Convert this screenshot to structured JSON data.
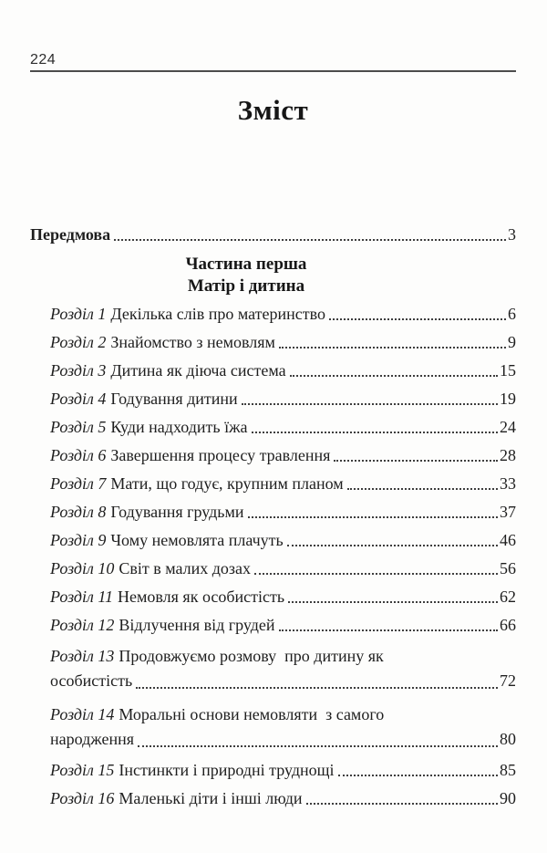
{
  "page": {
    "header_page_number": "224",
    "title": "Зміст"
  },
  "toc": {
    "preface": {
      "label": "Передмова",
      "page": "3"
    },
    "part_heading": {
      "line1": "Частина перша",
      "line2": "Матір і дитина"
    },
    "entries": [
      {
        "prefix": "Розділ 1",
        "title": "Декілька слів про материнство",
        "page": "6"
      },
      {
        "prefix": "Розділ 2",
        "title": "Знайомство з немовлям",
        "page": "9"
      },
      {
        "prefix": "Розділ 3",
        "title": "Дитина як діюча система",
        "page": "15"
      },
      {
        "prefix": "Розділ 4",
        "title": "Годування дитини",
        "page": "19"
      },
      {
        "prefix": "Розділ 5",
        "title": "Куди надходить їжа",
        "page": "24"
      },
      {
        "prefix": "Розділ 6",
        "title": "Завершення процесу травлення",
        "page": "28"
      },
      {
        "prefix": "Розділ 7",
        "title": "Мати, що годує, крупним планом",
        "page": "33"
      },
      {
        "prefix": "Розділ 8",
        "title": "Годування грудьми",
        "page": "37"
      },
      {
        "prefix": "Розділ 9",
        "title": "Чому немовлята плачуть",
        "page": "46"
      },
      {
        "prefix": "Розділ 10",
        "title": "Світ в малих дозах",
        "page": "56"
      },
      {
        "prefix": "Розділ 11",
        "title": "Немовля як особистість",
        "page": "62"
      },
      {
        "prefix": "Розділ 12",
        "title": "Відлучення від грудей",
        "page": "66"
      },
      {
        "prefix": "Розділ 13",
        "title": "Продовжуємо розмову  про дитину як",
        "title2": "особистість",
        "page": "72"
      },
      {
        "prefix": "Розділ 14",
        "title": "Моральні основи немовляти  з самого",
        "title2": "народження",
        "page": "80"
      },
      {
        "prefix": "Розділ 15",
        "title": "Інстинкти і природні труднощі",
        "page": "85"
      },
      {
        "prefix": "Розділ 16",
        "title": "Маленькі діти і інші люди",
        "page": "90"
      }
    ]
  }
}
